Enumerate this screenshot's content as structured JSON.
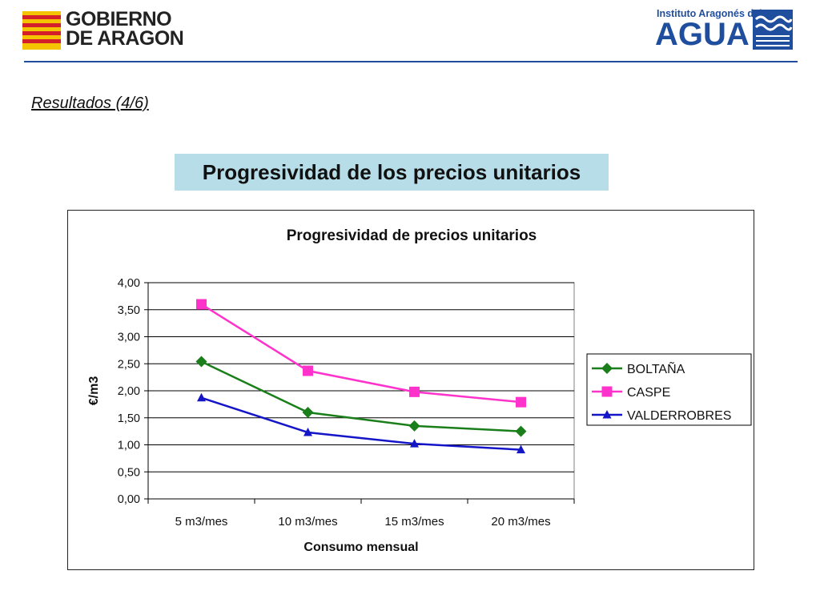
{
  "header": {
    "logo_left_text": "GOBIERNO\nDE ARAGON",
    "logo_right_small": "Instituto Aragonés del",
    "logo_right_big": "AGUA"
  },
  "section_link": "Resultados (4/6)",
  "slide_title": "Progresividad de los precios unitarios",
  "colors": {
    "title_bg": "#b7dde8",
    "boltana": "#1a7f1a",
    "caspe": "#ff33cc",
    "valderrobres": "#1515c8"
  },
  "chart_data": {
    "type": "line",
    "title": "Progresividad de precios unitarios",
    "xlabel": "Consumo mensual",
    "ylabel": "€/m3",
    "categories": [
      "5 m3/mes",
      "10 m3/mes",
      "15 m3/mes",
      "20 m3/mes"
    ],
    "ylim": [
      0,
      4
    ],
    "yticks": [
      "0,00",
      "0,50",
      "1,00",
      "1,50",
      "2,00",
      "2,50",
      "3,00",
      "3,50",
      "4,00"
    ],
    "grid": true,
    "legend_position": "right",
    "series": [
      {
        "name": "BOLTAÑA",
        "marker": "diamond",
        "color": "#1a7f1a",
        "values": [
          2.54,
          1.6,
          1.35,
          1.25
        ]
      },
      {
        "name": "CASPE",
        "marker": "square",
        "color": "#ff33cc",
        "values": [
          3.6,
          2.37,
          1.98,
          1.79
        ]
      },
      {
        "name": "VALDERROBRES",
        "marker": "triangle",
        "color": "#1515c8",
        "values": [
          1.87,
          1.23,
          1.02,
          0.91
        ]
      }
    ]
  }
}
